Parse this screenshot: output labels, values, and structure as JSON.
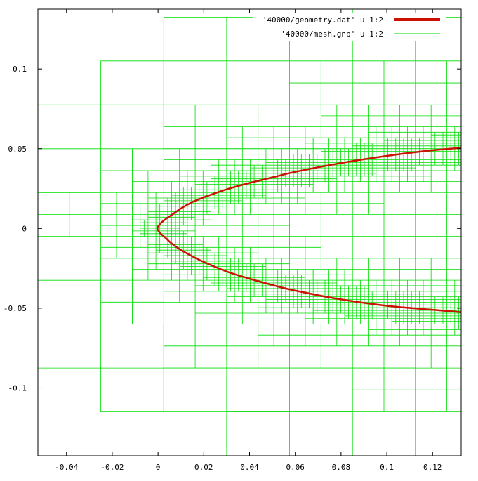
{
  "chart_data": {
    "type": "line",
    "title": "",
    "xlabel": "",
    "ylabel": "",
    "xlim": [
      -0.0525,
      0.1325
    ],
    "ylim": [
      -0.1425,
      0.1375
    ],
    "x_ticks": [
      {
        "value": -0.04,
        "label": "-0.04"
      },
      {
        "value": -0.02,
        "label": "-0.02"
      },
      {
        "value": 0,
        "label": "0"
      },
      {
        "value": 0.02,
        "label": "0.02"
      },
      {
        "value": 0.04,
        "label": "0.04"
      },
      {
        "value": 0.06,
        "label": "0.06"
      },
      {
        "value": 0.08,
        "label": "0.08"
      },
      {
        "value": 0.1,
        "label": "0.1"
      },
      {
        "value": 0.12,
        "label": "0.12"
      }
    ],
    "y_ticks": [
      {
        "value": 0.1,
        "label": "0.1"
      },
      {
        "value": 0.05,
        "label": "0.05"
      },
      {
        "value": 0,
        "label": "0"
      },
      {
        "value": -0.05,
        "label": "-0.05"
      },
      {
        "value": -0.1,
        "label": "-0.1"
      }
    ],
    "grid": false,
    "legend_position": "top-right",
    "series": [
      {
        "name": "'40000/geometry.dat' u 1:2",
        "color": "#cc1100",
        "kind": "curve",
        "x": [
          0.1325,
          0.12,
          0.1,
          0.08,
          0.06,
          0.05,
          0.04,
          0.03,
          0.02,
          0.015,
          0.01,
          0.006,
          0.003,
          0.001,
          -0.0003,
          0.001,
          0.003,
          0.006,
          0.01,
          0.015,
          0.02,
          0.03,
          0.04,
          0.05,
          0.06,
          0.08,
          0.1,
          0.12,
          0.1325
        ],
        "y": [
          0.0505,
          0.049,
          0.0455,
          0.041,
          0.0355,
          0.032,
          0.0285,
          0.0245,
          0.0195,
          0.0165,
          0.0125,
          0.0085,
          0.0055,
          0.003,
          0.0,
          -0.003,
          -0.0055,
          -0.0095,
          -0.0135,
          -0.0175,
          -0.021,
          -0.027,
          -0.0315,
          -0.0355,
          -0.039,
          -0.0445,
          -0.0485,
          -0.051,
          -0.0525
        ]
      },
      {
        "name": "'40000/mesh.gnp' u 1:2",
        "color": "#00dd00",
        "kind": "adaptive-quadtree-mesh",
        "domain": {
          "x": [
            -0.0525,
            0.1325
          ],
          "y": [
            -0.1425,
            0.1375
          ]
        },
        "root_cell_size": 0.0275,
        "finest_cell_size": 0.0017
      }
    ]
  }
}
